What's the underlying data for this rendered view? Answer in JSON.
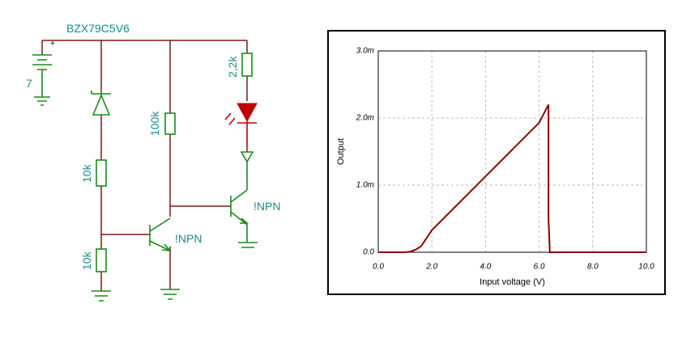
{
  "circuit": {
    "zener_label": "BZX79C5V6",
    "battery_label": "7",
    "r1_label": "10k",
    "r2_label": "10k",
    "r3_label": "100k",
    "r4_label": "2,2k",
    "q1_label": "!NPN",
    "q2_label": "!NPN"
  },
  "chart_data": {
    "type": "line",
    "xlabel": "Input voltage (V)",
    "ylabel": "Output",
    "color": "#8b0000",
    "x": [
      0,
      1.0,
      1.2,
      1.4,
      1.6,
      2.0,
      3.0,
      4.0,
      5.0,
      6.0,
      6.35,
      6.35,
      6.4,
      10.0
    ],
    "values": [
      0,
      0,
      1e-05,
      4e-05,
      9e-05,
      0.00033,
      0.00073,
      0.00113,
      0.00153,
      0.00193,
      0.0022,
      0.0005,
      0,
      0
    ],
    "xlim": [
      0,
      10
    ],
    "ylim": [
      0,
      0.003
    ],
    "xticks": [
      {
        "value": 0,
        "label": "0.0"
      },
      {
        "value": 2,
        "label": "2.0"
      },
      {
        "value": 4,
        "label": "4.0"
      },
      {
        "value": 6,
        "label": "6.0"
      },
      {
        "value": 8,
        "label": "8.0"
      },
      {
        "value": 10,
        "label": "10.0"
      }
    ],
    "yticks": [
      {
        "value": 0,
        "label": "0.0"
      },
      {
        "value": 0.001,
        "label": "1.0m"
      },
      {
        "value": 0.002,
        "label": "2.0m"
      },
      {
        "value": 0.003,
        "label": "3.0m"
      }
    ],
    "grid": true
  }
}
